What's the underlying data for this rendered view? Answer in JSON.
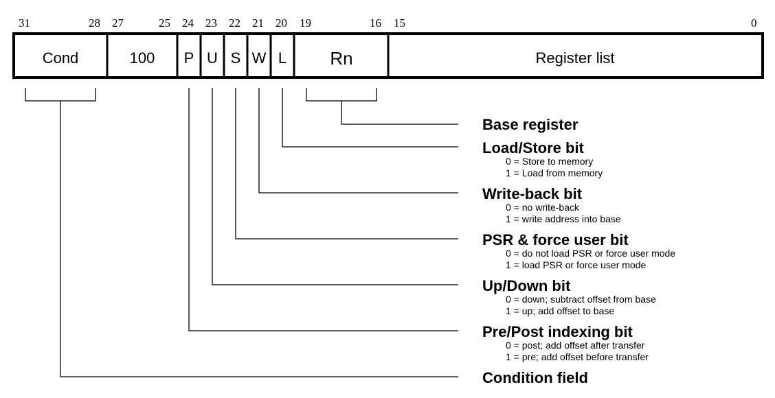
{
  "bit_numbers": {
    "b31": "31",
    "b28": "28",
    "b27": "27",
    "b25": "25",
    "b24": "24",
    "b23": "23",
    "b22": "22",
    "b21": "21",
    "b20": "20",
    "b19": "19",
    "b16": "16",
    "b15": "15",
    "b0": "0"
  },
  "fields": {
    "cond": "Cond",
    "opcode": "100",
    "p": "P",
    "u": "U",
    "s": "S",
    "w": "W",
    "l": "L",
    "rn": "Rn",
    "reglist": "Register list"
  },
  "annotations": {
    "base": {
      "title": "Base register"
    },
    "load_store": {
      "title": "Load/Store bit",
      "line1": "0 = Store to memory",
      "line2": "1 = Load from memory"
    },
    "write_back": {
      "title": "Write-back bit",
      "line1": "0 = no write-back",
      "line2": "1 = write address into base"
    },
    "psr": {
      "title": "PSR & force user bit",
      "line1": "0 = do not load PSR or force user mode",
      "line2": "1 = load PSR or force user mode"
    },
    "up_down": {
      "title": "Up/Down bit",
      "line1": "0 = down; subtract offset from base",
      "line2": "1 = up; add offset to base"
    },
    "pre_post": {
      "title": "Pre/Post indexing bit",
      "line1": "0 = post; add offset after transfer",
      "line2": "1 = pre; add offset before transfer"
    },
    "cond_field": {
      "title": "Condition field"
    }
  }
}
